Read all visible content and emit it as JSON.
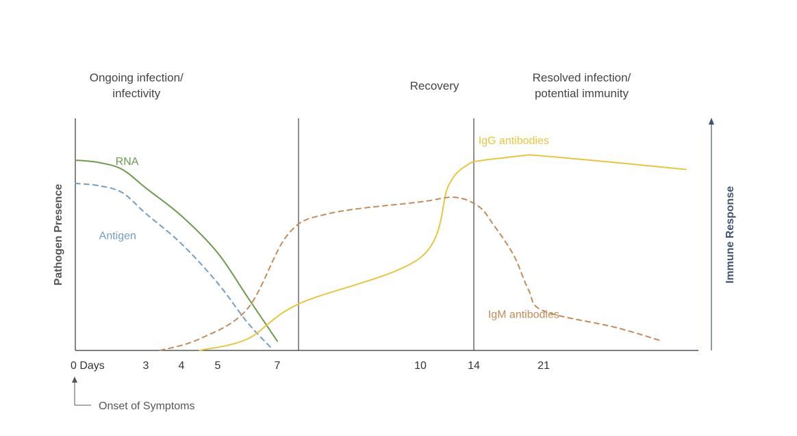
{
  "colors": {
    "rna": "#6a9a4c",
    "antigen": "#6e9ec4",
    "igg": "#e8c53a",
    "igm": "#c58a55",
    "axis": "#333333",
    "immune_axis": "#3e5470",
    "presence_axis": "#555555"
  },
  "chart_data": {
    "type": "line",
    "y_left_label": "Pathogen Presence",
    "y_right_label": "Immune Response",
    "x_ticks": [
      {
        "label": "0 Days",
        "x": 0
      },
      {
        "label": "3",
        "x": 3
      },
      {
        "label": "4",
        "x": 4
      },
      {
        "label": "5",
        "x": 5
      },
      {
        "label": "7",
        "x": 7
      },
      {
        "label": "10",
        "x": 10
      },
      {
        "label": "14",
        "x": 14
      },
      {
        "label": "21",
        "x": 21
      }
    ],
    "phase_boundaries": [
      8.0,
      14
    ],
    "phases": [
      {
        "lines": [
          "Ongoing infection/",
          "infectivity"
        ],
        "x_center": 2.6
      },
      {
        "lines": [
          "Recovery"
        ],
        "x_center": 11.0
      },
      {
        "lines": [
          "Resolved infection/",
          "potential immunity"
        ],
        "x_center": 21.8
      }
    ],
    "annotation": "Onset of Symptoms",
    "y_range": [
      0,
      100
    ],
    "series": [
      {
        "name": "RNA",
        "style": "solid",
        "color_key": "rna",
        "label_at": [
          2.2,
          80
        ],
        "points": [
          [
            0,
            82
          ],
          [
            1.0,
            81
          ],
          [
            2.0,
            78
          ],
          [
            3.0,
            70
          ],
          [
            4.0,
            58
          ],
          [
            5.0,
            42
          ],
          [
            6.0,
            23
          ],
          [
            7.0,
            4
          ]
        ]
      },
      {
        "name": "Antigen",
        "style": "dashed",
        "color_key": "antigen",
        "label_at": [
          1.8,
          48
        ],
        "points": [
          [
            0,
            72
          ],
          [
            1.0,
            71
          ],
          [
            2.0,
            68
          ],
          [
            3.0,
            59
          ],
          [
            4.0,
            46
          ],
          [
            5.0,
            29
          ],
          [
            6.0,
            12
          ],
          [
            6.8,
            1
          ]
        ]
      },
      {
        "name": "IgG antibodies",
        "style": "solid",
        "color_key": "igg",
        "label_at": [
          18.0,
          89
        ],
        "points": [
          [
            4.5,
            0
          ],
          [
            6.0,
            5
          ],
          [
            8.0,
            20
          ],
          [
            10.0,
            40
          ],
          [
            12.0,
            71
          ],
          [
            13.5,
            80
          ],
          [
            15.0,
            82
          ],
          [
            17.0,
            83
          ],
          [
            19.0,
            84
          ],
          [
            20.5,
            84
          ],
          [
            22.5,
            81
          ],
          [
            24.0,
            78
          ]
        ]
      },
      {
        "name": "IgM antibodies",
        "style": "dashed",
        "color_key": "igm",
        "label_at": [
          19.0,
          14
        ],
        "points": [
          [
            3.4,
            0
          ],
          [
            4.5,
            5
          ],
          [
            6.0,
            18
          ],
          [
            7.5,
            50
          ],
          [
            8.5,
            59
          ],
          [
            10.0,
            64
          ],
          [
            12.5,
            66
          ],
          [
            14.5,
            62
          ],
          [
            16.0,
            54
          ],
          [
            18.0,
            41
          ],
          [
            19.5,
            26
          ],
          [
            21.0,
            17
          ],
          [
            22.5,
            10
          ],
          [
            23.5,
            4
          ]
        ]
      }
    ]
  }
}
